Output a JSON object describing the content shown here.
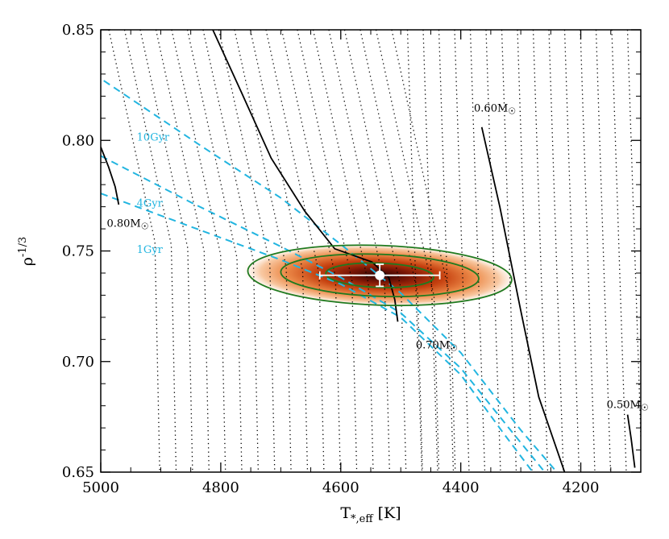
{
  "chart_data": {
    "type": "scatter",
    "title": "",
    "xlabel": {
      "main": "T",
      "sub": "*,eff",
      "unit": " [K]"
    },
    "ylabel": {
      "main": "ρ",
      "sup": "-1/3"
    },
    "xlim": [
      5000,
      4100
    ],
    "ylim": [
      0.65,
      0.85
    ],
    "x_reversed": true,
    "xticks": [
      5000,
      4800,
      4600,
      4400,
      4200
    ],
    "xtick_labels": [
      "5000",
      "4800",
      "4600",
      "4400",
      "4200"
    ],
    "yticks": [
      0.65,
      0.7,
      0.75,
      0.8,
      0.85
    ],
    "ytick_labels": [
      "0.65",
      "0.70",
      "0.75",
      "0.80",
      "0.85"
    ],
    "grid": false,
    "colors": {
      "isochrone": "#22b5e0",
      "contour": "#1f7a1f",
      "track": "#000000",
      "density_core": "#3a0a05",
      "density_mid": "#c0390f",
      "density_outer": "#f7b98a",
      "marker": "#ffffff"
    },
    "measurement": {
      "teff": 4535,
      "teff_err": 100,
      "rho_m13": 0.739,
      "rho_m13_err": 0.005
    },
    "contours": [
      {
        "level": "1-sigma",
        "teff_half_width": 90,
        "rho_half_width": 0.0055
      },
      {
        "level": "2-sigma",
        "teff_half_width": 165,
        "rho_half_width": 0.0095
      },
      {
        "level": "3-sigma",
        "teff_half_width": 220,
        "rho_half_width": 0.0135
      }
    ],
    "mass_tracks": [
      {
        "label_main": "0.80M",
        "label_sym": "☉",
        "points": [
          [
            5000,
            0.797
          ],
          [
            4987,
            0.788
          ],
          [
            4976,
            0.779
          ],
          [
            4970,
            0.771
          ]
        ],
        "label_at": [
          4990,
          0.761
        ]
      },
      {
        "label_main": "0.70M",
        "label_sym": "☉",
        "points": [
          [
            4820,
            0.854
          ],
          [
            4766,
            0.822
          ],
          [
            4716,
            0.792
          ],
          [
            4660,
            0.768
          ],
          [
            4610,
            0.751
          ],
          [
            4548,
            0.745
          ],
          [
            4520,
            0.738
          ],
          [
            4510,
            0.728
          ],
          [
            4505,
            0.718
          ]
        ],
        "label_at": [
          4475,
          0.706
        ]
      },
      {
        "label_main": "0.60M",
        "label_sym": "☉",
        "points": [
          [
            4365,
            0.806
          ],
          [
            4335,
            0.77
          ],
          [
            4300,
            0.723
          ],
          [
            4270,
            0.684
          ],
          [
            4227,
            0.65
          ]
        ],
        "label_at": [
          4378,
          0.813
        ]
      },
      {
        "label_main": "0.50M",
        "label_sym": "☉",
        "points": [
          [
            4122,
            0.676
          ],
          [
            4116,
            0.665
          ],
          [
            4110,
            0.652
          ]
        ],
        "label_at": [
          4157,
          0.679
        ]
      }
    ],
    "isochrones": [
      {
        "label": "10Gyr",
        "points": [
          [
            4995,
            0.827
          ],
          [
            4830,
            0.797
          ],
          [
            4700,
            0.774
          ],
          [
            4600,
            0.753
          ],
          [
            4500,
            0.731
          ],
          [
            4400,
            0.704
          ],
          [
            4300,
            0.669
          ],
          [
            4240,
            0.65
          ]
        ],
        "label_at": [
          4940,
          0.8
        ]
      },
      {
        "label": "4Gyr",
        "points": [
          [
            5000,
            0.793
          ],
          [
            4850,
            0.772
          ],
          [
            4700,
            0.752
          ],
          [
            4600,
            0.738
          ],
          [
            4500,
            0.722
          ],
          [
            4400,
            0.697
          ],
          [
            4320,
            0.67
          ],
          [
            4260,
            0.65
          ]
        ],
        "label_at": [
          4940,
          0.77
        ]
      },
      {
        "label": "1Gyr",
        "points": [
          [
            5000,
            0.776
          ],
          [
            4850,
            0.761
          ],
          [
            4700,
            0.746
          ],
          [
            4600,
            0.735
          ],
          [
            4500,
            0.72
          ],
          [
            4400,
            0.694
          ],
          [
            4330,
            0.668
          ],
          [
            4280,
            0.65
          ]
        ],
        "label_at": [
          4940,
          0.749
        ]
      }
    ]
  }
}
